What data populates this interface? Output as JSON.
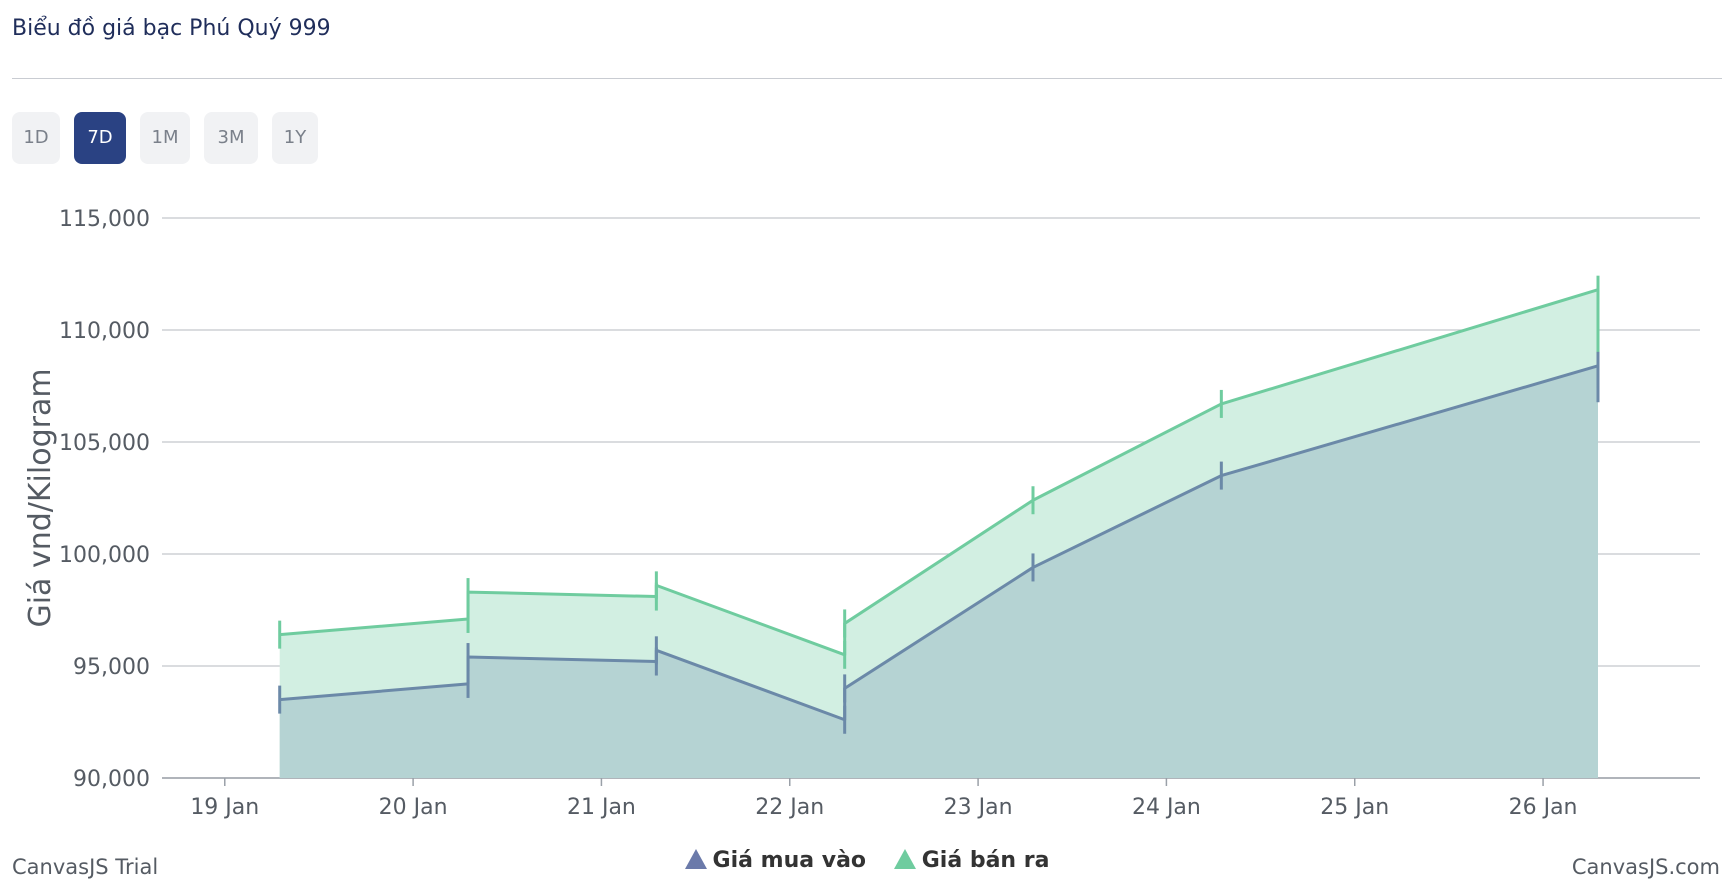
{
  "header": {
    "title": "Biểu đồ giá bạc Phú Quý 999"
  },
  "range_buttons": [
    {
      "label": "1D",
      "active": false
    },
    {
      "label": "7D",
      "active": true
    },
    {
      "label": "1M",
      "active": false
    },
    {
      "label": "3M",
      "active": false
    },
    {
      "label": "1Y",
      "active": false
    }
  ],
  "footer": {
    "left": "CanvasJS Trial",
    "right": "CanvasJS.com"
  },
  "colors": {
    "buy": "#6b89a8",
    "buy_fill": "#b5d3d3",
    "sell": "#6fcc9f",
    "sell_fill": "#d2efe2",
    "grid": "#c4c7cc",
    "axis_text": "#555b63"
  },
  "chart_data": {
    "type": "area",
    "title": "Biểu đồ giá bạc Phú Quý 999",
    "ylabel": "Giá vnd/Kilogram",
    "xlabel": "",
    "ylim": [
      90000,
      115000
    ],
    "y_ticks": [
      "90,000",
      "95,000",
      "100,000",
      "105,000",
      "110,000",
      "115,000"
    ],
    "x_ticks": [
      "19 Jan",
      "20 Jan",
      "21 Jan",
      "22 Jan",
      "23 Jan",
      "24 Jan",
      "25 Jan",
      "26 Jan"
    ],
    "x_range": [
      "2025-01-18 16:00",
      "2025-01-26 20:00"
    ],
    "grid": true,
    "legend_position": "bottom-center",
    "series": [
      {
        "name": "Giá mua vào",
        "color": "#6b89a8",
        "points": [
          {
            "x": "2025-01-19 07:00",
            "y": 93500
          },
          {
            "x": "2025-01-20 07:00",
            "y": 94200
          },
          {
            "x": "2025-01-20 07:00",
            "y": 95400
          },
          {
            "x": "2025-01-21 07:00",
            "y": 95200
          },
          {
            "x": "2025-01-21 07:00",
            "y": 95700
          },
          {
            "x": "2025-01-22 07:00",
            "y": 92600
          },
          {
            "x": "2025-01-22 07:00",
            "y": 94000
          },
          {
            "x": "2025-01-23 07:00",
            "y": 99400
          },
          {
            "x": "2025-01-24 07:00",
            "y": 103500
          },
          {
            "x": "2025-01-26 07:00",
            "y": 108400
          },
          {
            "x": "2025-01-26 07:00",
            "y": 107400
          }
        ]
      },
      {
        "name": "Giá bán ra",
        "color": "#6fcc9f",
        "points": [
          {
            "x": "2025-01-19 07:00",
            "y": 96400
          },
          {
            "x": "2025-01-20 07:00",
            "y": 97100
          },
          {
            "x": "2025-01-20 07:00",
            "y": 98300
          },
          {
            "x": "2025-01-21 07:00",
            "y": 98100
          },
          {
            "x": "2025-01-21 07:00",
            "y": 98600
          },
          {
            "x": "2025-01-22 07:00",
            "y": 95500
          },
          {
            "x": "2025-01-22 07:00",
            "y": 96900
          },
          {
            "x": "2025-01-23 07:00",
            "y": 102400
          },
          {
            "x": "2025-01-24 07:00",
            "y": 106700
          },
          {
            "x": "2025-01-26 07:00",
            "y": 111800
          },
          {
            "x": "2025-01-26 07:00",
            "y": 107500
          }
        ]
      }
    ]
  }
}
